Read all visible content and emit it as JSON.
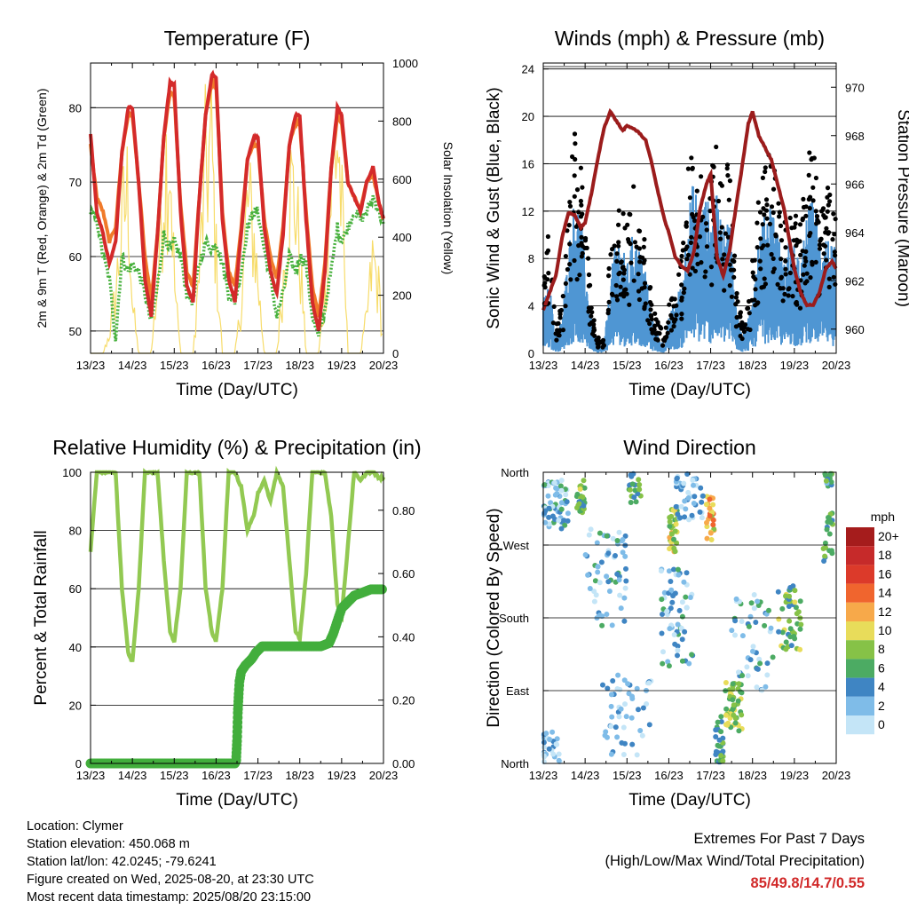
{
  "colors": {
    "temp_2m": "#d42a2a",
    "temp_9m": "#f07a2a",
    "dewpoint": "#46b03c",
    "solar": "#f7dc6a",
    "wind_gust": "#000000",
    "wind_speed": "#4f96d3",
    "pressure": "#9b1c1c",
    "rh": "#92c952",
    "precip": "#42ae3c"
  },
  "info": {
    "location": "Location: Clymer",
    "elevation": "Station elevation: 450.068 m",
    "latlon": "Station lat/lon: 42.0245; -79.6241",
    "created": "Figure created on Wed, 2025-08-20, at 23:30 UTC",
    "recent": "Most recent data timestamp: 2025/08/20 23:15:00"
  },
  "extremes": {
    "title": "Extremes For Past 7 Days",
    "subtitle": "(High/Low/Max Wind/Total Precipitation)",
    "values": "85/49.8/14.7/0.55"
  },
  "chart_data": [
    {
      "type": "line",
      "title": "Temperature (F)",
      "xlabel": "Time (Day/UTC)",
      "ylabel": "2m & 9m T (Red, Orange) & 2m Td (Green)",
      "ylabel_right": "Solar Insolation (Yellow)",
      "x_ticks": [
        "13/23",
        "14/23",
        "15/23",
        "16/23",
        "17/23",
        "18/23",
        "19/23",
        "20/23"
      ],
      "ylim": [
        47,
        86
      ],
      "y_ticks": [
        50,
        60,
        70,
        80
      ],
      "ylim_right": [
        0,
        1000
      ],
      "y_ticks_right": [
        0,
        200,
        400,
        600,
        800,
        1000
      ],
      "grid": "horizontal",
      "x_days": [
        0,
        0.15,
        0.3,
        0.45,
        0.6,
        0.75,
        0.9,
        1.0,
        1.15,
        1.3,
        1.45,
        1.6,
        1.75,
        1.9,
        2.0,
        2.15,
        2.3,
        2.45,
        2.6,
        2.75,
        2.9,
        3.0,
        3.15,
        3.3,
        3.45,
        3.6,
        3.75,
        3.9,
        4.0,
        4.15,
        4.3,
        4.45,
        4.6,
        4.75,
        4.9,
        5.0,
        5.15,
        5.3,
        5.45,
        5.6,
        5.75,
        5.9,
        6.0,
        6.15,
        6.3,
        6.45,
        6.6,
        6.75,
        6.9,
        7.0
      ],
      "series": [
        {
          "name": "2m T",
          "color": "temp_2m",
          "values": [
            76.5,
            66,
            63,
            59,
            62,
            74,
            80,
            80,
            70,
            57,
            52,
            63,
            76,
            83.5,
            83,
            66,
            56,
            54,
            68,
            79,
            84.5,
            84,
            65,
            57,
            54,
            63,
            73,
            76,
            76,
            64,
            58,
            55,
            63,
            75,
            79,
            79,
            65,
            54,
            50,
            58,
            72,
            80,
            79,
            70,
            68,
            66,
            70,
            72,
            67,
            65
          ]
        },
        {
          "name": "9m T",
          "color": "temp_9m",
          "values": [
            75,
            68,
            66,
            62,
            64,
            74,
            79,
            79,
            70,
            60,
            54,
            63,
            76,
            82,
            81.5,
            67,
            58,
            56,
            68,
            79,
            83.5,
            83,
            66,
            58,
            56,
            64,
            73,
            75,
            75,
            65,
            60,
            57,
            64,
            75,
            78,
            78,
            66,
            56,
            52,
            59,
            72,
            79,
            78,
            70,
            68,
            66.5,
            70,
            71,
            67,
            65
          ]
        },
        {
          "name": "2m Td",
          "color": "dewpoint",
          "values": [
            66,
            65,
            60,
            57,
            49,
            60,
            58,
            59,
            58,
            55,
            51,
            56,
            63,
            61,
            62,
            60,
            55,
            54,
            59,
            62,
            61,
            62,
            59,
            55,
            54,
            58,
            64,
            66,
            66,
            61,
            57,
            52,
            55,
            60,
            58,
            60,
            59,
            52,
            49,
            53,
            58,
            64,
            62,
            64,
            66,
            65,
            66,
            68,
            66,
            64
          ]
        },
        {
          "name": "Solar",
          "color": "solar",
          "axis": "right",
          "values": [
            0,
            0,
            0,
            80,
            250,
            550,
            700,
            200,
            0,
            0,
            0,
            300,
            750,
            900,
            300,
            0,
            0,
            0,
            350,
            800,
            850,
            400,
            0,
            0,
            0,
            200,
            650,
            500,
            300,
            0,
            0,
            0,
            300,
            700,
            650,
            400,
            0,
            0,
            0,
            250,
            700,
            950,
            600,
            0,
            0,
            0,
            150,
            400,
            250,
            0
          ]
        }
      ]
    },
    {
      "type": "line",
      "title": "Winds (mph) & Pressure (mb)",
      "xlabel": "Time (Day/UTC)",
      "ylabel": "Sonic Wind & Gust (Blue, Black)",
      "ylabel_right": "Station Pressure (Maroon)",
      "x_ticks": [
        "13/23",
        "14/23",
        "15/23",
        "16/23",
        "17/23",
        "18/23",
        "19/23",
        "20/23"
      ],
      "ylim": [
        0,
        24.5
      ],
      "y_ticks": [
        0,
        4,
        8,
        12,
        16,
        20,
        24
      ],
      "ylim_right": [
        959,
        971
      ],
      "y_ticks_right": [
        960,
        962,
        964,
        966,
        968,
        970
      ],
      "grid": "horizontal",
      "x_days": [
        0,
        0.15,
        0.3,
        0.45,
        0.6,
        0.75,
        0.9,
        1.0,
        1.15,
        1.3,
        1.45,
        1.6,
        1.75,
        1.9,
        2.0,
        2.15,
        2.3,
        2.45,
        2.6,
        2.75,
        2.9,
        3.0,
        3.15,
        3.3,
        3.45,
        3.6,
        3.75,
        3.9,
        4.0,
        4.15,
        4.3,
        4.45,
        4.6,
        4.75,
        4.9,
        5.0,
        5.15,
        5.3,
        5.45,
        5.6,
        5.75,
        5.9,
        6.0,
        6.15,
        6.3,
        6.45,
        6.6,
        6.75,
        6.9,
        7.0
      ],
      "series": [
        {
          "name": "Gust",
          "color": "wind_gust",
          "values": [
            6,
            8,
            2,
            3,
            10,
            14,
            12,
            9,
            3,
            1,
            1,
            7,
            10,
            9,
            8,
            11,
            9,
            7,
            3,
            2,
            1,
            3,
            4,
            6,
            12,
            14,
            11,
            13,
            12,
            14,
            10,
            13,
            5,
            2,
            3,
            6,
            10,
            12,
            13,
            10,
            8,
            11,
            9,
            8,
            12,
            14,
            10,
            11,
            10,
            9
          ]
        },
        {
          "name": "Wind",
          "color": "wind_speed",
          "values": [
            3,
            4,
            1,
            2,
            6,
            9,
            8,
            5,
            2,
            0.5,
            0.5,
            4,
            7,
            6,
            5,
            7,
            6,
            5,
            2,
            1,
            0.5,
            2,
            3,
            4,
            8,
            10,
            8,
            9,
            8,
            9,
            7,
            8,
            3,
            1,
            2,
            4,
            7,
            8,
            9,
            7,
            5,
            7,
            6,
            5,
            8,
            9,
            7,
            7,
            6,
            6
          ]
        },
        {
          "name": "Pressure",
          "color": "pressure",
          "axis": "right",
          "values": [
            960.8,
            961.5,
            962.2,
            963.8,
            964.8,
            964.7,
            964.2,
            964.4,
            965.6,
            967.0,
            968.3,
            969.0,
            968.6,
            968.2,
            968.4,
            968.3,
            968.1,
            967.8,
            966.8,
            965.6,
            964.5,
            964.0,
            963.0,
            962.6,
            962.4,
            963.2,
            965.0,
            966.0,
            966.4,
            963.0,
            962.2,
            963.2,
            965.0,
            966.7,
            968.5,
            969.0,
            968.0,
            967.5,
            967.0,
            966.0,
            965.0,
            963.5,
            962.5,
            961.5,
            961.0,
            961.0,
            961.5,
            962.5,
            962.8,
            962.5
          ]
        }
      ]
    },
    {
      "type": "line",
      "title": "Relative Humidity (%) & Precipitation (in)",
      "xlabel": "Time (Day/UTC)",
      "ylabel": "Percent & Total Rainfall",
      "x_ticks": [
        "13/23",
        "14/23",
        "15/23",
        "16/23",
        "17/23",
        "18/23",
        "19/23",
        "20/23"
      ],
      "ylim": [
        0,
        100
      ],
      "y_ticks": [
        0,
        20,
        40,
        60,
        80,
        100
      ],
      "ylim_right": [
        0,
        0.92
      ],
      "y_ticks_right": [
        "0.00",
        "0.20",
        "0.40",
        "0.60",
        "0.80"
      ],
      "grid": "horizontal",
      "x_days": [
        0,
        0.15,
        0.3,
        0.45,
        0.6,
        0.75,
        0.9,
        1.0,
        1.15,
        1.3,
        1.45,
        1.6,
        1.75,
        1.9,
        2.0,
        2.15,
        2.3,
        2.45,
        2.6,
        2.75,
        2.9,
        3.0,
        3.15,
        3.3,
        3.45,
        3.6,
        3.75,
        3.9,
        4.0,
        4.15,
        4.3,
        4.45,
        4.6,
        4.75,
        4.9,
        5.0,
        5.15,
        5.3,
        5.45,
        5.6,
        5.75,
        5.9,
        6.0,
        6.15,
        6.3,
        6.45,
        6.6,
        6.75,
        6.9,
        7.0
      ],
      "series": [
        {
          "name": "RH",
          "color": "rh",
          "values": [
            73,
            100,
            100,
            100,
            100,
            60,
            38,
            35,
            60,
            100,
            100,
            100,
            70,
            45,
            42,
            60,
            100,
            100,
            100,
            60,
            45,
            42,
            60,
            100,
            100,
            95,
            80,
            85,
            93,
            97,
            90,
            100,
            95,
            70,
            45,
            43,
            65,
            100,
            100,
            100,
            85,
            55,
            50,
            75,
            100,
            97,
            100,
            100,
            98,
            98
          ]
        },
        {
          "name": "Precip",
          "color": "precip",
          "axis": "right",
          "points": [
            [
              0,
              0
            ],
            [
              1.0,
              0
            ],
            [
              2.0,
              0
            ],
            [
              3.0,
              0
            ],
            [
              3.45,
              0
            ],
            [
              3.48,
              0.01
            ],
            [
              3.5,
              0.07
            ],
            [
              3.52,
              0.16
            ],
            [
              3.54,
              0.22
            ],
            [
              3.56,
              0.26
            ],
            [
              3.6,
              0.29
            ],
            [
              3.7,
              0.31
            ],
            [
              3.85,
              0.33
            ],
            [
              3.95,
              0.35
            ],
            [
              4.1,
              0.37
            ],
            [
              4.3,
              0.37
            ],
            [
              4.6,
              0.37
            ],
            [
              4.9,
              0.37
            ],
            [
              5.2,
              0.37
            ],
            [
              5.5,
              0.37
            ],
            [
              5.7,
              0.38
            ],
            [
              5.8,
              0.41
            ],
            [
              5.9,
              0.45
            ],
            [
              6.0,
              0.49
            ],
            [
              6.15,
              0.51
            ],
            [
              6.3,
              0.53
            ],
            [
              6.5,
              0.54
            ],
            [
              6.7,
              0.55
            ],
            [
              6.9,
              0.55
            ],
            [
              7.0,
              0.55
            ]
          ]
        }
      ]
    },
    {
      "type": "scatter",
      "title": "Wind Direction",
      "xlabel": "Time (Day/UTC)",
      "ylabel": "Direction (Colored By Speed)",
      "x_ticks": [
        "13/23",
        "14/23",
        "15/23",
        "16/23",
        "17/23",
        "18/23",
        "19/23",
        "20/23"
      ],
      "y_ticks": [
        "North",
        "East",
        "South",
        "West",
        "North"
      ],
      "ylim": [
        0,
        360
      ],
      "legend_title": "mph",
      "legend_labels": [
        "20+",
        "18",
        "16",
        "14",
        "12",
        "10",
        "8",
        "6",
        "4",
        "2",
        "0"
      ],
      "legend_colors": [
        "#a51c1c",
        "#c62a2a",
        "#dc3a2a",
        "#f0652e",
        "#f7a94a",
        "#e8dc5a",
        "#86c247",
        "#4cab63",
        "#3f85c3",
        "#7fbce8",
        "#c4e5f7"
      ],
      "legend_placement": "right",
      "clusters": [
        {
          "x": 0.3,
          "y": 320,
          "spread_x": 0.3,
          "spread_y": 30,
          "speed": 3,
          "n": 60
        },
        {
          "x": 0.9,
          "y": 330,
          "spread_x": 0.1,
          "spread_y": 20,
          "speed": 7,
          "n": 30
        },
        {
          "x": 2.2,
          "y": 340,
          "spread_x": 0.15,
          "spread_y": 20,
          "speed": 6,
          "n": 20
        },
        {
          "x": 3.1,
          "y": 290,
          "spread_x": 0.1,
          "spread_y": 30,
          "speed": 9,
          "n": 30
        },
        {
          "x": 4.0,
          "y": 300,
          "spread_x": 0.1,
          "spread_y": 30,
          "speed": 11,
          "n": 25
        },
        {
          "x": 3.5,
          "y": 330,
          "spread_x": 0.35,
          "spread_y": 30,
          "speed": 2,
          "n": 45
        },
        {
          "x": 1.5,
          "y": 230,
          "spread_x": 0.5,
          "spread_y": 60,
          "speed": 3,
          "n": 60
        },
        {
          "x": 3.2,
          "y": 180,
          "spread_x": 0.4,
          "spread_y": 60,
          "speed": 3,
          "n": 60
        },
        {
          "x": 5.9,
          "y": 180,
          "spread_x": 0.3,
          "spread_y": 40,
          "speed": 7,
          "n": 45
        },
        {
          "x": 5.0,
          "y": 150,
          "spread_x": 0.5,
          "spread_y": 60,
          "speed": 3,
          "n": 50
        },
        {
          "x": 4.55,
          "y": 70,
          "spread_x": 0.2,
          "spread_y": 30,
          "speed": 8,
          "n": 50
        },
        {
          "x": 4.2,
          "y": 30,
          "spread_x": 0.1,
          "spread_y": 30,
          "speed": 6,
          "n": 30
        },
        {
          "x": 2.0,
          "y": 60,
          "spread_x": 0.6,
          "spread_y": 50,
          "speed": 2,
          "n": 50
        },
        {
          "x": 6.8,
          "y": 280,
          "spread_x": 0.12,
          "spread_y": 30,
          "speed": 6,
          "n": 20
        },
        {
          "x": 6.8,
          "y": 350,
          "spread_x": 0.1,
          "spread_y": 10,
          "speed": 5,
          "n": 15
        },
        {
          "x": 0.1,
          "y": 20,
          "spread_x": 0.3,
          "spread_y": 20,
          "speed": 2,
          "n": 30
        }
      ]
    }
  ]
}
